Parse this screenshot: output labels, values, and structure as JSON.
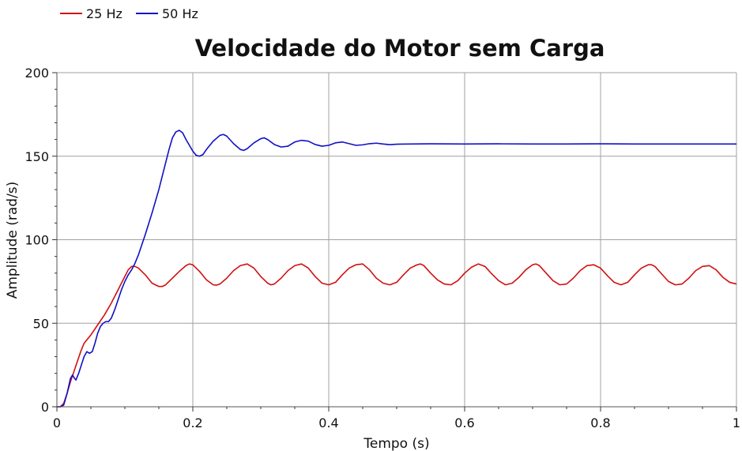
{
  "chart_data": {
    "type": "line",
    "title": "Velocidade do Motor sem Carga",
    "xlabel": "Tempo (s)",
    "ylabel": "Amplitude (rad/s)",
    "xlim": [
      0,
      1
    ],
    "ylim": [
      0,
      200
    ],
    "x_ticks": [
      0,
      0.2,
      0.4,
      0.6,
      0.8,
      1
    ],
    "x_tick_labels": [
      "0",
      "0.2",
      "0.4",
      "0.6",
      "0.8",
      "1"
    ],
    "y_ticks": [
      0,
      50,
      100,
      150,
      200
    ],
    "y_tick_labels": [
      "0",
      "50",
      "100",
      "150",
      "200"
    ],
    "grid": true,
    "legend_position": "top-left",
    "series": [
      {
        "name": "25 Hz",
        "color": "#d01010",
        "points": [
          [
            0,
            0
          ],
          [
            0.005,
            0
          ],
          [
            0.01,
            2
          ],
          [
            0.015,
            8
          ],
          [
            0.02,
            15
          ],
          [
            0.025,
            21
          ],
          [
            0.03,
            27
          ],
          [
            0.035,
            33
          ],
          [
            0.04,
            38
          ],
          [
            0.05,
            43
          ],
          [
            0.06,
            49
          ],
          [
            0.07,
            55
          ],
          [
            0.08,
            62
          ],
          [
            0.09,
            70
          ],
          [
            0.1,
            78
          ],
          [
            0.105,
            82
          ],
          [
            0.11,
            84
          ],
          [
            0.115,
            84
          ],
          [
            0.12,
            83
          ],
          [
            0.13,
            79
          ],
          [
            0.14,
            74
          ],
          [
            0.15,
            72
          ],
          [
            0.155,
            72
          ],
          [
            0.16,
            73
          ],
          [
            0.17,
            77
          ],
          [
            0.18,
            81
          ],
          [
            0.19,
            84.5
          ],
          [
            0.195,
            85.5
          ],
          [
            0.2,
            85
          ],
          [
            0.21,
            81
          ],
          [
            0.22,
            76
          ],
          [
            0.23,
            73
          ],
          [
            0.235,
            72.8
          ],
          [
            0.24,
            73.5
          ],
          [
            0.25,
            77
          ],
          [
            0.26,
            81.5
          ],
          [
            0.27,
            84.5
          ],
          [
            0.28,
            85.5
          ],
          [
            0.29,
            83
          ],
          [
            0.3,
            78
          ],
          [
            0.31,
            74
          ],
          [
            0.315,
            73
          ],
          [
            0.32,
            73.5
          ],
          [
            0.33,
            77
          ],
          [
            0.34,
            81.5
          ],
          [
            0.35,
            84.5
          ],
          [
            0.36,
            85.5
          ],
          [
            0.37,
            83
          ],
          [
            0.38,
            78
          ],
          [
            0.39,
            74
          ],
          [
            0.4,
            73
          ],
          [
            0.41,
            74.5
          ],
          [
            0.42,
            79
          ],
          [
            0.43,
            83
          ],
          [
            0.44,
            85
          ],
          [
            0.45,
            85.5
          ],
          [
            0.46,
            82
          ],
          [
            0.47,
            77
          ],
          [
            0.48,
            74
          ],
          [
            0.49,
            73
          ],
          [
            0.5,
            74.5
          ],
          [
            0.51,
            79
          ],
          [
            0.52,
            83
          ],
          [
            0.53,
            85
          ],
          [
            0.535,
            85.5
          ],
          [
            0.54,
            84.5
          ],
          [
            0.55,
            80
          ],
          [
            0.56,
            76
          ],
          [
            0.57,
            73.5
          ],
          [
            0.58,
            73
          ],
          [
            0.59,
            75.5
          ],
          [
            0.6,
            80
          ],
          [
            0.61,
            83.5
          ],
          [
            0.62,
            85.5
          ],
          [
            0.63,
            84
          ],
          [
            0.64,
            79.5
          ],
          [
            0.65,
            75.5
          ],
          [
            0.66,
            73
          ],
          [
            0.67,
            74
          ],
          [
            0.68,
            77.5
          ],
          [
            0.69,
            82
          ],
          [
            0.7,
            85
          ],
          [
            0.705,
            85.5
          ],
          [
            0.71,
            84.5
          ],
          [
            0.72,
            80
          ],
          [
            0.73,
            75.5
          ],
          [
            0.74,
            73
          ],
          [
            0.75,
            73.5
          ],
          [
            0.76,
            77
          ],
          [
            0.77,
            81.5
          ],
          [
            0.78,
            84.5
          ],
          [
            0.79,
            85
          ],
          [
            0.8,
            83
          ],
          [
            0.81,
            78.5
          ],
          [
            0.82,
            74.5
          ],
          [
            0.83,
            73
          ],
          [
            0.84,
            74.5
          ],
          [
            0.85,
            79
          ],
          [
            0.86,
            83
          ],
          [
            0.87,
            85
          ],
          [
            0.875,
            85
          ],
          [
            0.88,
            84
          ],
          [
            0.89,
            79.5
          ],
          [
            0.9,
            75
          ],
          [
            0.91,
            73
          ],
          [
            0.92,
            73.5
          ],
          [
            0.93,
            77
          ],
          [
            0.94,
            81.5
          ],
          [
            0.95,
            84
          ],
          [
            0.96,
            84.5
          ],
          [
            0.97,
            82
          ],
          [
            0.98,
            77.5
          ],
          [
            0.99,
            74.5
          ],
          [
            1,
            73.5
          ]
        ]
      },
      {
        "name": "50 Hz",
        "color": "#1010c8",
        "points": [
          [
            0,
            0
          ],
          [
            0.005,
            0
          ],
          [
            0.01,
            1
          ],
          [
            0.015,
            8
          ],
          [
            0.02,
            17
          ],
          [
            0.023,
            19
          ],
          [
            0.026,
            17
          ],
          [
            0.028,
            16
          ],
          [
            0.032,
            20
          ],
          [
            0.036,
            25
          ],
          [
            0.04,
            30
          ],
          [
            0.044,
            33
          ],
          [
            0.048,
            32
          ],
          [
            0.052,
            33
          ],
          [
            0.056,
            38
          ],
          [
            0.06,
            44
          ],
          [
            0.064,
            48
          ],
          [
            0.068,
            50
          ],
          [
            0.072,
            51
          ],
          [
            0.076,
            51
          ],
          [
            0.08,
            53
          ],
          [
            0.085,
            58
          ],
          [
            0.09,
            64
          ],
          [
            0.095,
            70
          ],
          [
            0.1,
            75
          ],
          [
            0.105,
            79
          ],
          [
            0.11,
            82
          ],
          [
            0.115,
            86
          ],
          [
            0.12,
            91
          ],
          [
            0.13,
            103
          ],
          [
            0.14,
            116
          ],
          [
            0.15,
            130
          ],
          [
            0.16,
            146
          ],
          [
            0.165,
            154
          ],
          [
            0.17,
            161
          ],
          [
            0.175,
            164.5
          ],
          [
            0.18,
            165.5
          ],
          [
            0.185,
            164
          ],
          [
            0.19,
            160
          ],
          [
            0.2,
            153
          ],
          [
            0.205,
            150.5
          ],
          [
            0.21,
            150
          ],
          [
            0.215,
            151
          ],
          [
            0.22,
            154
          ],
          [
            0.23,
            159
          ],
          [
            0.24,
            162.5
          ],
          [
            0.245,
            163
          ],
          [
            0.25,
            162
          ],
          [
            0.26,
            157.5
          ],
          [
            0.27,
            154
          ],
          [
            0.275,
            153.5
          ],
          [
            0.28,
            154.5
          ],
          [
            0.29,
            158
          ],
          [
            0.3,
            160.5
          ],
          [
            0.305,
            161
          ],
          [
            0.31,
            160
          ],
          [
            0.32,
            157
          ],
          [
            0.33,
            155.5
          ],
          [
            0.34,
            156
          ],
          [
            0.35,
            158.5
          ],
          [
            0.36,
            159.5
          ],
          [
            0.37,
            159
          ],
          [
            0.38,
            157
          ],
          [
            0.39,
            156
          ],
          [
            0.4,
            156.5
          ],
          [
            0.41,
            158
          ],
          [
            0.42,
            158.5
          ],
          [
            0.43,
            157.5
          ],
          [
            0.44,
            156.5
          ],
          [
            0.45,
            156.8
          ],
          [
            0.46,
            157.5
          ],
          [
            0.47,
            157.8
          ],
          [
            0.48,
            157.3
          ],
          [
            0.49,
            156.9
          ],
          [
            0.5,
            157.2
          ],
          [
            0.55,
            157.4
          ],
          [
            0.6,
            157.3
          ],
          [
            0.65,
            157.4
          ],
          [
            0.7,
            157.3
          ],
          [
            0.75,
            157.3
          ],
          [
            0.8,
            157.4
          ],
          [
            0.85,
            157.3
          ],
          [
            0.9,
            157.3
          ],
          [
            0.95,
            157.3
          ],
          [
            1,
            157.3
          ]
        ]
      }
    ]
  }
}
